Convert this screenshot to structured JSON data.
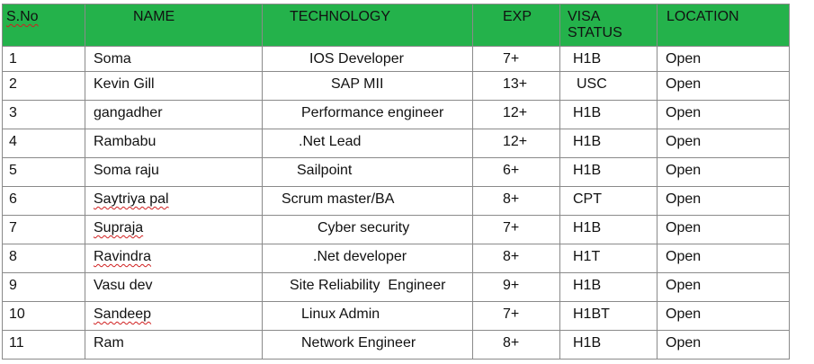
{
  "headers": {
    "sno": "S.No",
    "name": "NAME",
    "technology": "TECHNOLOGY",
    "exp": "EXP",
    "visa_status": "VISA STATUS",
    "location": "LOCATION"
  },
  "rows": [
    {
      "sno": "1",
      "name": "Soma",
      "technology": "IOS Developer",
      "exp": "7+",
      "visa": "H1B",
      "location": "Open"
    },
    {
      "sno": "2",
      "name": "Kevin Gill",
      "technology": "SAP MII",
      "exp": "13+",
      "visa": "USC",
      "location": "Open"
    },
    {
      "sno": "3",
      "name": "gangadher",
      "technology": "Performance engineer",
      "exp": "12+",
      "visa": "H1B",
      "location": "Open"
    },
    {
      "sno": "4",
      "name": "Rambabu",
      "technology": ".Net Lead",
      "exp": "12+",
      "visa": "H1B",
      "location": "Open"
    },
    {
      "sno": "5",
      "name": "Soma raju",
      "technology": "Sailpoint",
      "exp": "6+",
      "visa": "H1B",
      "location": "Open"
    },
    {
      "sno": "6",
      "name": "Saytriya pal",
      "technology": "Scrum master/BA",
      "exp": "8+",
      "visa": "CPT",
      "location": "Open"
    },
    {
      "sno": "7",
      "name": "Supraja",
      "technology": "Cyber security",
      "exp": "7+",
      "visa": "H1B",
      "location": "Open"
    },
    {
      "sno": "8",
      "name": "Ravindra",
      "technology": ".Net developer",
      "exp": "8+",
      "visa": "H1T",
      "location": "Open"
    },
    {
      "sno": "9",
      "name": "Vasu dev",
      "technology": "Site Reliability  Engineer",
      "exp": "9+",
      "visa": "H1B",
      "location": "Open"
    },
    {
      "sno": "10",
      "name": "Sandeep",
      "technology": "Linux Admin",
      "exp": "7+",
      "visa": "H1BT",
      "location": "Open"
    },
    {
      "sno": "11",
      "name": "Ram",
      "technology": "Network Engineer",
      "exp": "8+",
      "visa": "H1B",
      "location": "Open"
    }
  ],
  "colors": {
    "header_bg": "#24b24b",
    "border": "#8a8a8a",
    "spellcheck": "#d02020"
  }
}
